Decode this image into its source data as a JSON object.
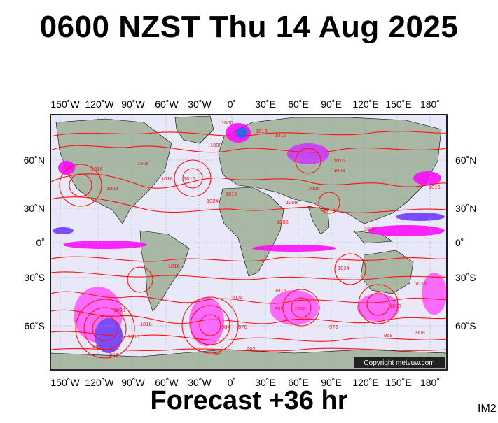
{
  "header": {
    "title": "0600 NZST Thu 14 Aug 2025"
  },
  "footer": {
    "forecast": "Forecast +36 hr",
    "tag": "IM2"
  },
  "map": {
    "copyright": "Copyright metvuw.com",
    "lon_labels": [
      "150˚W",
      "120˚W",
      "90˚W",
      "60˚W",
      "30˚W",
      "0˚",
      "30˚E",
      "60˚E",
      "90˚E",
      "120˚E",
      "150˚E",
      "180˚"
    ],
    "lat_labels": [
      "60˚N",
      "30˚N",
      "0˚",
      "30˚S",
      "60˚S"
    ],
    "isobar_labels": [
      "1000",
      "1016",
      "1016",
      "1008",
      "1016",
      "1008",
      "1016",
      "1000",
      "1016",
      "1024",
      "1016",
      "1016",
      "1008",
      "1008",
      "1008",
      "1016",
      "1016",
      "1008",
      "1008",
      "1024",
      "1016",
      "1024",
      "1000",
      "1000",
      "992",
      "1016",
      "1008",
      "984",
      "976",
      "1000",
      "1008",
      "1016",
      "1024",
      "960",
      "968",
      "984",
      "992",
      "976",
      "968"
    ],
    "colors": {
      "isobar": "#ff1010",
      "rain_heavy": "#ff00ff",
      "rain_light": "#6633ff",
      "land": "#a8b8a4",
      "ocean": "#e8e8f8",
      "border": "#000000"
    }
  }
}
